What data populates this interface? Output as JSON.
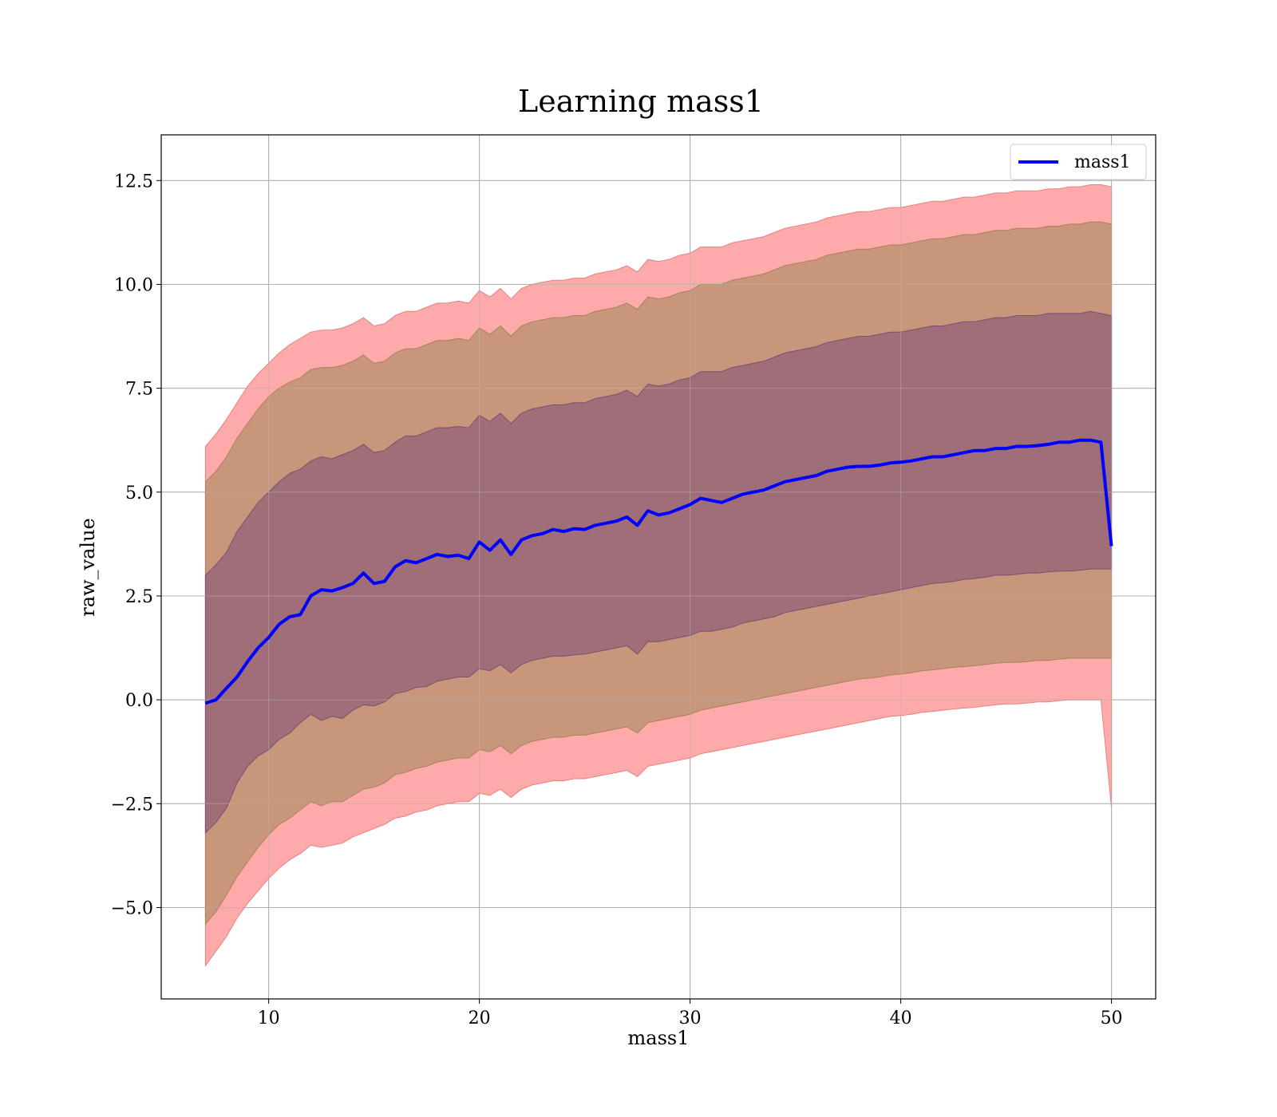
{
  "chart_data": {
    "type": "area",
    "title": "Learning mass1",
    "xlabel": "mass1",
    "ylabel": "raw_value",
    "xlim": [
      4.9,
      52.1
    ],
    "ylim": [
      -7.2,
      13.6
    ],
    "x_ticks": [
      10,
      20,
      30,
      40,
      50
    ],
    "x_tick_labels": [
      "10",
      "20",
      "30",
      "40",
      "50"
    ],
    "y_ticks": [
      -5.0,
      -2.5,
      0.0,
      2.5,
      5.0,
      7.5,
      10.0,
      12.5
    ],
    "y_tick_labels": [
      "−5.0",
      "−2.5",
      "0.0",
      "2.5",
      "5.0",
      "7.5",
      "10.0",
      "12.5"
    ],
    "grid": true,
    "legend": {
      "position": "top-right",
      "entries": [
        "mass1"
      ]
    },
    "colors": {
      "mean_line": "#0000ff",
      "band_3sigma": "#ffaaaa",
      "band_2sigma": "#c8967a",
      "band_1sigma": "#a06e78",
      "band_edge_3": "#e88080",
      "band_edge_2": "#a8805a",
      "band_edge_1": "#7a4e70",
      "grid": "#b0b0b0"
    },
    "series": [
      {
        "name": "mass1",
        "x": [
          7.0,
          7.5,
          8.0,
          8.5,
          9.0,
          9.5,
          10.0,
          10.5,
          11.0,
          11.5,
          12.0,
          12.5,
          13.0,
          13.5,
          14.0,
          14.5,
          15.0,
          15.5,
          16.0,
          16.5,
          17.0,
          17.5,
          18.0,
          18.5,
          19.0,
          19.5,
          20.0,
          20.5,
          21.0,
          21.5,
          22.0,
          22.5,
          23.0,
          23.5,
          24.0,
          24.5,
          25.0,
          25.5,
          26.0,
          26.5,
          27.0,
          27.5,
          28.0,
          28.5,
          29.0,
          29.5,
          30.0,
          30.5,
          31.0,
          31.5,
          32.0,
          32.5,
          33.0,
          33.5,
          34.0,
          34.5,
          35.0,
          35.5,
          36.0,
          36.5,
          37.0,
          37.5,
          38.0,
          38.5,
          39.0,
          39.5,
          40.0,
          40.5,
          41.0,
          41.5,
          42.0,
          42.5,
          43.0,
          43.5,
          44.0,
          44.5,
          45.0,
          45.5,
          46.0,
          46.5,
          47.0,
          47.5,
          48.0,
          48.5,
          49.0,
          49.5,
          50.0
        ],
        "mean": [
          -0.08,
          0.0,
          0.28,
          0.55,
          0.92,
          1.25,
          1.5,
          1.82,
          2.0,
          2.05,
          2.5,
          2.65,
          2.62,
          2.7,
          2.8,
          3.05,
          2.8,
          2.85,
          3.2,
          3.35,
          3.3,
          3.4,
          3.5,
          3.45,
          3.48,
          3.4,
          3.8,
          3.6,
          3.85,
          3.5,
          3.85,
          3.95,
          4.0,
          4.1,
          4.05,
          4.12,
          4.1,
          4.2,
          4.25,
          4.3,
          4.4,
          4.2,
          4.55,
          4.45,
          4.5,
          4.6,
          4.7,
          4.85,
          4.8,
          4.75,
          4.85,
          4.95,
          5.0,
          5.05,
          5.15,
          5.25,
          5.3,
          5.35,
          5.4,
          5.5,
          5.55,
          5.6,
          5.62,
          5.62,
          5.65,
          5.7,
          5.72,
          5.75,
          5.8,
          5.85,
          5.85,
          5.9,
          5.95,
          6.0,
          6.0,
          6.05,
          6.05,
          6.1,
          6.1,
          6.12,
          6.15,
          6.2,
          6.2,
          6.25,
          6.25,
          6.2,
          3.7
        ],
        "sigma1_lower": [
          -3.2,
          -2.95,
          -2.6,
          -2.0,
          -1.6,
          -1.35,
          -1.2,
          -0.95,
          -0.8,
          -0.55,
          -0.35,
          -0.5,
          -0.4,
          -0.45,
          -0.25,
          -0.12,
          -0.15,
          -0.05,
          0.15,
          0.2,
          0.3,
          0.32,
          0.45,
          0.5,
          0.55,
          0.55,
          0.75,
          0.7,
          0.85,
          0.65,
          0.85,
          0.95,
          1.0,
          1.05,
          1.05,
          1.08,
          1.1,
          1.15,
          1.2,
          1.25,
          1.3,
          1.1,
          1.4,
          1.4,
          1.45,
          1.5,
          1.55,
          1.65,
          1.65,
          1.7,
          1.75,
          1.85,
          1.9,
          1.95,
          2.0,
          2.1,
          2.15,
          2.2,
          2.25,
          2.3,
          2.35,
          2.4,
          2.45,
          2.5,
          2.55,
          2.6,
          2.65,
          2.7,
          2.75,
          2.8,
          2.82,
          2.85,
          2.9,
          2.92,
          2.95,
          3.0,
          3.0,
          3.02,
          3.05,
          3.05,
          3.08,
          3.1,
          3.1,
          3.12,
          3.15,
          3.15,
          3.15
        ],
        "sigma1_upper": [
          3.0,
          3.25,
          3.55,
          4.05,
          4.4,
          4.75,
          5.0,
          5.25,
          5.45,
          5.55,
          5.75,
          5.85,
          5.8,
          5.9,
          6.0,
          6.15,
          5.95,
          6.0,
          6.2,
          6.35,
          6.35,
          6.45,
          6.55,
          6.55,
          6.58,
          6.55,
          6.85,
          6.7,
          6.9,
          6.65,
          6.9,
          7.0,
          7.05,
          7.1,
          7.1,
          7.15,
          7.15,
          7.25,
          7.3,
          7.35,
          7.45,
          7.3,
          7.6,
          7.55,
          7.6,
          7.7,
          7.75,
          7.9,
          7.9,
          7.9,
          8.0,
          8.05,
          8.1,
          8.15,
          8.25,
          8.35,
          8.4,
          8.45,
          8.5,
          8.6,
          8.65,
          8.7,
          8.75,
          8.75,
          8.8,
          8.85,
          8.85,
          8.9,
          8.95,
          9.0,
          9.0,
          9.05,
          9.1,
          9.1,
          9.15,
          9.2,
          9.2,
          9.25,
          9.25,
          9.25,
          9.3,
          9.3,
          9.3,
          9.3,
          9.35,
          9.3,
          9.25
        ],
        "sigma2_lower": [
          -5.4,
          -5.1,
          -4.7,
          -4.25,
          -3.9,
          -3.55,
          -3.25,
          -3.0,
          -2.85,
          -2.65,
          -2.45,
          -2.55,
          -2.45,
          -2.45,
          -2.3,
          -2.15,
          -2.1,
          -2.0,
          -1.8,
          -1.75,
          -1.65,
          -1.6,
          -1.5,
          -1.45,
          -1.4,
          -1.4,
          -1.2,
          -1.25,
          -1.1,
          -1.3,
          -1.1,
          -1.0,
          -0.95,
          -0.9,
          -0.9,
          -0.85,
          -0.85,
          -0.8,
          -0.75,
          -0.7,
          -0.65,
          -0.8,
          -0.55,
          -0.5,
          -0.45,
          -0.4,
          -0.35,
          -0.25,
          -0.2,
          -0.15,
          -0.1,
          -0.05,
          0.0,
          0.05,
          0.1,
          0.15,
          0.2,
          0.25,
          0.3,
          0.35,
          0.4,
          0.45,
          0.5,
          0.52,
          0.55,
          0.6,
          0.62,
          0.65,
          0.7,
          0.72,
          0.75,
          0.78,
          0.8,
          0.82,
          0.85,
          0.88,
          0.9,
          0.9,
          0.92,
          0.95,
          0.95,
          0.98,
          1.0,
          1.0,
          1.0,
          1.0,
          1.0
        ],
        "sigma2_upper": [
          5.25,
          5.5,
          5.85,
          6.3,
          6.65,
          7.0,
          7.3,
          7.5,
          7.65,
          7.75,
          7.95,
          8.0,
          8.0,
          8.05,
          8.15,
          8.3,
          8.1,
          8.15,
          8.35,
          8.45,
          8.45,
          8.55,
          8.65,
          8.65,
          8.7,
          8.65,
          8.95,
          8.8,
          9.0,
          8.75,
          9.0,
          9.1,
          9.15,
          9.2,
          9.2,
          9.25,
          9.25,
          9.35,
          9.4,
          9.45,
          9.55,
          9.4,
          9.7,
          9.65,
          9.7,
          9.8,
          9.85,
          10.0,
          10.0,
          10.0,
          10.1,
          10.15,
          10.2,
          10.25,
          10.35,
          10.45,
          10.5,
          10.55,
          10.6,
          10.7,
          10.75,
          10.8,
          10.85,
          10.85,
          10.9,
          10.95,
          10.95,
          11.0,
          11.05,
          11.1,
          11.1,
          11.15,
          11.2,
          11.2,
          11.25,
          11.3,
          11.3,
          11.35,
          11.35,
          11.35,
          11.4,
          11.4,
          11.45,
          11.45,
          11.5,
          11.5,
          11.45
        ],
        "sigma3_lower": [
          -6.4,
          -6.05,
          -5.7,
          -5.25,
          -4.9,
          -4.6,
          -4.3,
          -4.05,
          -3.85,
          -3.7,
          -3.5,
          -3.55,
          -3.5,
          -3.45,
          -3.3,
          -3.2,
          -3.1,
          -3.0,
          -2.85,
          -2.8,
          -2.7,
          -2.65,
          -2.55,
          -2.5,
          -2.45,
          -2.45,
          -2.25,
          -2.3,
          -2.15,
          -2.35,
          -2.15,
          -2.05,
          -2.0,
          -1.95,
          -1.95,
          -1.9,
          -1.9,
          -1.85,
          -1.8,
          -1.75,
          -1.7,
          -1.85,
          -1.6,
          -1.55,
          -1.5,
          -1.45,
          -1.4,
          -1.3,
          -1.25,
          -1.2,
          -1.15,
          -1.1,
          -1.05,
          -1.0,
          -0.95,
          -0.9,
          -0.85,
          -0.8,
          -0.75,
          -0.7,
          -0.65,
          -0.6,
          -0.55,
          -0.5,
          -0.45,
          -0.4,
          -0.38,
          -0.35,
          -0.3,
          -0.28,
          -0.25,
          -0.22,
          -0.2,
          -0.18,
          -0.15,
          -0.12,
          -0.1,
          -0.1,
          -0.08,
          -0.05,
          -0.05,
          -0.02,
          0.0,
          0.0,
          0.0,
          0.0,
          -2.6
        ],
        "sigma3_upper": [
          6.1,
          6.4,
          6.75,
          7.15,
          7.55,
          7.85,
          8.1,
          8.35,
          8.55,
          8.7,
          8.85,
          8.9,
          8.9,
          8.95,
          9.05,
          9.2,
          9.0,
          9.05,
          9.25,
          9.35,
          9.35,
          9.45,
          9.55,
          9.55,
          9.6,
          9.55,
          9.85,
          9.7,
          9.9,
          9.65,
          9.9,
          10.0,
          10.05,
          10.1,
          10.1,
          10.15,
          10.15,
          10.25,
          10.3,
          10.35,
          10.45,
          10.3,
          10.6,
          10.55,
          10.6,
          10.7,
          10.75,
          10.9,
          10.9,
          10.9,
          11.0,
          11.05,
          11.1,
          11.15,
          11.25,
          11.35,
          11.4,
          11.45,
          11.5,
          11.6,
          11.65,
          11.7,
          11.75,
          11.75,
          11.8,
          11.85,
          11.85,
          11.9,
          11.95,
          12.0,
          12.0,
          12.05,
          12.1,
          12.1,
          12.15,
          12.2,
          12.2,
          12.25,
          12.25,
          12.25,
          12.3,
          12.3,
          12.35,
          12.35,
          12.4,
          12.4,
          12.35
        ]
      }
    ]
  }
}
